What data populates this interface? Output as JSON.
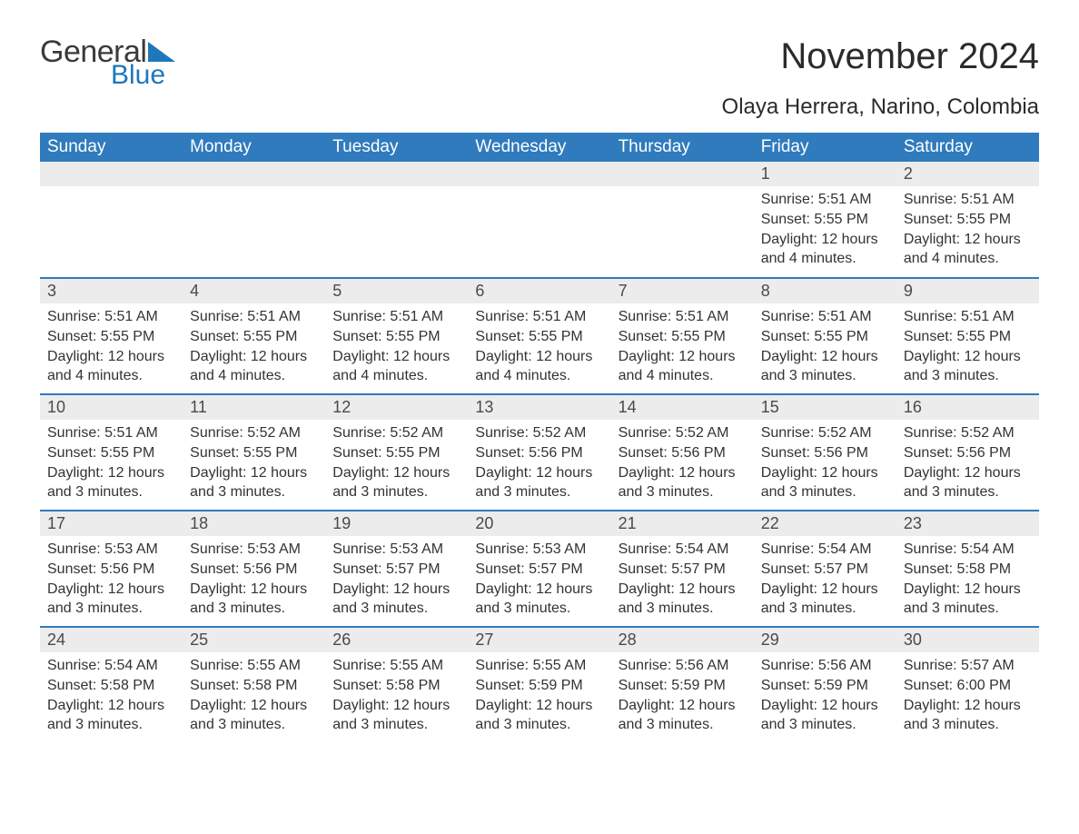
{
  "logo": {
    "text_general": "General",
    "text_blue": "Blue",
    "triangle_color": "#1f77b9",
    "text_general_color": "#3a3a3a",
    "text_blue_color": "#1f77b9"
  },
  "title": "November 2024",
  "subtitle": "Olaya Herrera, Narino, Colombia",
  "colors": {
    "header_bg": "#2f7bbd",
    "header_text": "#ffffff",
    "daynum_bg": "#ececec",
    "daynum_text": "#4a4a4a",
    "body_text": "#333333",
    "row_border": "#2f7bbd",
    "page_bg": "#ffffff"
  },
  "fonts": {
    "title_size_pt": 30,
    "subtitle_size_pt": 18,
    "header_size_pt": 14,
    "daynum_size_pt": 13,
    "body_size_pt": 12,
    "family": "Arial"
  },
  "day_headers": [
    "Sunday",
    "Monday",
    "Tuesday",
    "Wednesday",
    "Thursday",
    "Friday",
    "Saturday"
  ],
  "weeks": [
    [
      {
        "empty": true
      },
      {
        "empty": true
      },
      {
        "empty": true
      },
      {
        "empty": true
      },
      {
        "empty": true
      },
      {
        "day": "1",
        "sunrise": "Sunrise: 5:51 AM",
        "sunset": "Sunset: 5:55 PM",
        "daylight": "Daylight: 12 hours and 4 minutes."
      },
      {
        "day": "2",
        "sunrise": "Sunrise: 5:51 AM",
        "sunset": "Sunset: 5:55 PM",
        "daylight": "Daylight: 12 hours and 4 minutes."
      }
    ],
    [
      {
        "day": "3",
        "sunrise": "Sunrise: 5:51 AM",
        "sunset": "Sunset: 5:55 PM",
        "daylight": "Daylight: 12 hours and 4 minutes."
      },
      {
        "day": "4",
        "sunrise": "Sunrise: 5:51 AM",
        "sunset": "Sunset: 5:55 PM",
        "daylight": "Daylight: 12 hours and 4 minutes."
      },
      {
        "day": "5",
        "sunrise": "Sunrise: 5:51 AM",
        "sunset": "Sunset: 5:55 PM",
        "daylight": "Daylight: 12 hours and 4 minutes."
      },
      {
        "day": "6",
        "sunrise": "Sunrise: 5:51 AM",
        "sunset": "Sunset: 5:55 PM",
        "daylight": "Daylight: 12 hours and 4 minutes."
      },
      {
        "day": "7",
        "sunrise": "Sunrise: 5:51 AM",
        "sunset": "Sunset: 5:55 PM",
        "daylight": "Daylight: 12 hours and 4 minutes."
      },
      {
        "day": "8",
        "sunrise": "Sunrise: 5:51 AM",
        "sunset": "Sunset: 5:55 PM",
        "daylight": "Daylight: 12 hours and 3 minutes."
      },
      {
        "day": "9",
        "sunrise": "Sunrise: 5:51 AM",
        "sunset": "Sunset: 5:55 PM",
        "daylight": "Daylight: 12 hours and 3 minutes."
      }
    ],
    [
      {
        "day": "10",
        "sunrise": "Sunrise: 5:51 AM",
        "sunset": "Sunset: 5:55 PM",
        "daylight": "Daylight: 12 hours and 3 minutes."
      },
      {
        "day": "11",
        "sunrise": "Sunrise: 5:52 AM",
        "sunset": "Sunset: 5:55 PM",
        "daylight": "Daylight: 12 hours and 3 minutes."
      },
      {
        "day": "12",
        "sunrise": "Sunrise: 5:52 AM",
        "sunset": "Sunset: 5:55 PM",
        "daylight": "Daylight: 12 hours and 3 minutes."
      },
      {
        "day": "13",
        "sunrise": "Sunrise: 5:52 AM",
        "sunset": "Sunset: 5:56 PM",
        "daylight": "Daylight: 12 hours and 3 minutes."
      },
      {
        "day": "14",
        "sunrise": "Sunrise: 5:52 AM",
        "sunset": "Sunset: 5:56 PM",
        "daylight": "Daylight: 12 hours and 3 minutes."
      },
      {
        "day": "15",
        "sunrise": "Sunrise: 5:52 AM",
        "sunset": "Sunset: 5:56 PM",
        "daylight": "Daylight: 12 hours and 3 minutes."
      },
      {
        "day": "16",
        "sunrise": "Sunrise: 5:52 AM",
        "sunset": "Sunset: 5:56 PM",
        "daylight": "Daylight: 12 hours and 3 minutes."
      }
    ],
    [
      {
        "day": "17",
        "sunrise": "Sunrise: 5:53 AM",
        "sunset": "Sunset: 5:56 PM",
        "daylight": "Daylight: 12 hours and 3 minutes."
      },
      {
        "day": "18",
        "sunrise": "Sunrise: 5:53 AM",
        "sunset": "Sunset: 5:56 PM",
        "daylight": "Daylight: 12 hours and 3 minutes."
      },
      {
        "day": "19",
        "sunrise": "Sunrise: 5:53 AM",
        "sunset": "Sunset: 5:57 PM",
        "daylight": "Daylight: 12 hours and 3 minutes."
      },
      {
        "day": "20",
        "sunrise": "Sunrise: 5:53 AM",
        "sunset": "Sunset: 5:57 PM",
        "daylight": "Daylight: 12 hours and 3 minutes."
      },
      {
        "day": "21",
        "sunrise": "Sunrise: 5:54 AM",
        "sunset": "Sunset: 5:57 PM",
        "daylight": "Daylight: 12 hours and 3 minutes."
      },
      {
        "day": "22",
        "sunrise": "Sunrise: 5:54 AM",
        "sunset": "Sunset: 5:57 PM",
        "daylight": "Daylight: 12 hours and 3 minutes."
      },
      {
        "day": "23",
        "sunrise": "Sunrise: 5:54 AM",
        "sunset": "Sunset: 5:58 PM",
        "daylight": "Daylight: 12 hours and 3 minutes."
      }
    ],
    [
      {
        "day": "24",
        "sunrise": "Sunrise: 5:54 AM",
        "sunset": "Sunset: 5:58 PM",
        "daylight": "Daylight: 12 hours and 3 minutes."
      },
      {
        "day": "25",
        "sunrise": "Sunrise: 5:55 AM",
        "sunset": "Sunset: 5:58 PM",
        "daylight": "Daylight: 12 hours and 3 minutes."
      },
      {
        "day": "26",
        "sunrise": "Sunrise: 5:55 AM",
        "sunset": "Sunset: 5:58 PM",
        "daylight": "Daylight: 12 hours and 3 minutes."
      },
      {
        "day": "27",
        "sunrise": "Sunrise: 5:55 AM",
        "sunset": "Sunset: 5:59 PM",
        "daylight": "Daylight: 12 hours and 3 minutes."
      },
      {
        "day": "28",
        "sunrise": "Sunrise: 5:56 AM",
        "sunset": "Sunset: 5:59 PM",
        "daylight": "Daylight: 12 hours and 3 minutes."
      },
      {
        "day": "29",
        "sunrise": "Sunrise: 5:56 AM",
        "sunset": "Sunset: 5:59 PM",
        "daylight": "Daylight: 12 hours and 3 minutes."
      },
      {
        "day": "30",
        "sunrise": "Sunrise: 5:57 AM",
        "sunset": "Sunset: 6:00 PM",
        "daylight": "Daylight: 12 hours and 3 minutes."
      }
    ]
  ]
}
